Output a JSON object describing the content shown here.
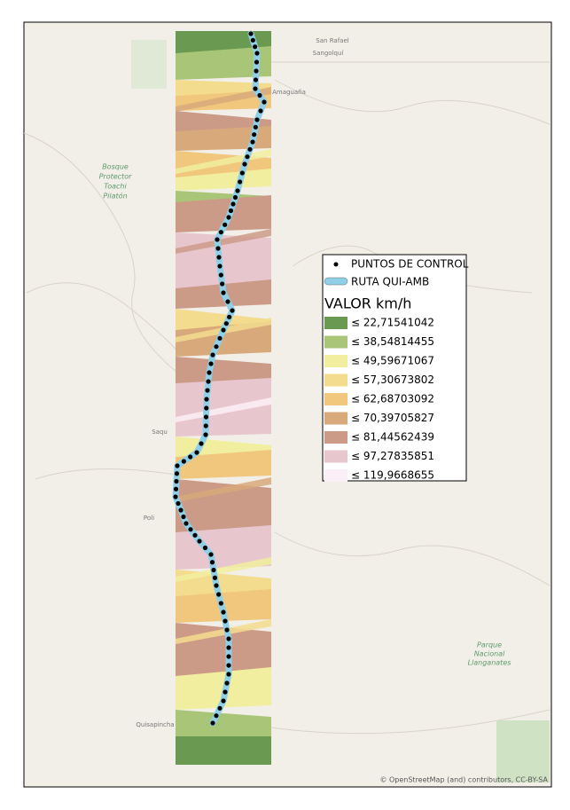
{
  "map": {
    "places": [
      {
        "label": "San Rafael"
      },
      {
        "label": "Sangolquí"
      },
      {
        "label": "Amaguaña"
      },
      {
        "label": "Bosque"
      },
      {
        "label": "Protector"
      },
      {
        "label": "Toachi"
      },
      {
        "label": "Pilatón"
      },
      {
        "label": "Parque"
      },
      {
        "label": "Nacional"
      },
      {
        "label": "Llanganates"
      },
      {
        "label": "Quisapincha"
      },
      {
        "label": "Saqu"
      },
      {
        "label": "Poli"
      }
    ],
    "attribution": "© OpenStreetMap (and) contributors, CC-BY-SA",
    "legend": {
      "points": "PUNTOS DE CONTROL",
      "route": "RUTA QUI-AMB",
      "title": "VALOR km/h",
      "classes": [
        {
          "label": "≤ 22,71541042",
          "color": "#6a9a52"
        },
        {
          "label": "≤ 38,54814455",
          "color": "#a9c678"
        },
        {
          "label": "≤ 49,59671067",
          "color": "#f1ef9f"
        },
        {
          "label": "≤ 57,30673802",
          "color": "#f3dc8e"
        },
        {
          "label": "≤ 62,68703092",
          "color": "#f1c77e"
        },
        {
          "label": "≤ 70,39705827",
          "color": "#d8a97a"
        },
        {
          "label": "≤ 81,44562439",
          "color": "#cc9b88"
        },
        {
          "label": "≤ 97,27835851",
          "color": "#e8c6cd"
        },
        {
          "label": "≤ 119,9668655",
          "color": "#fbeef6"
        }
      ]
    }
  }
}
